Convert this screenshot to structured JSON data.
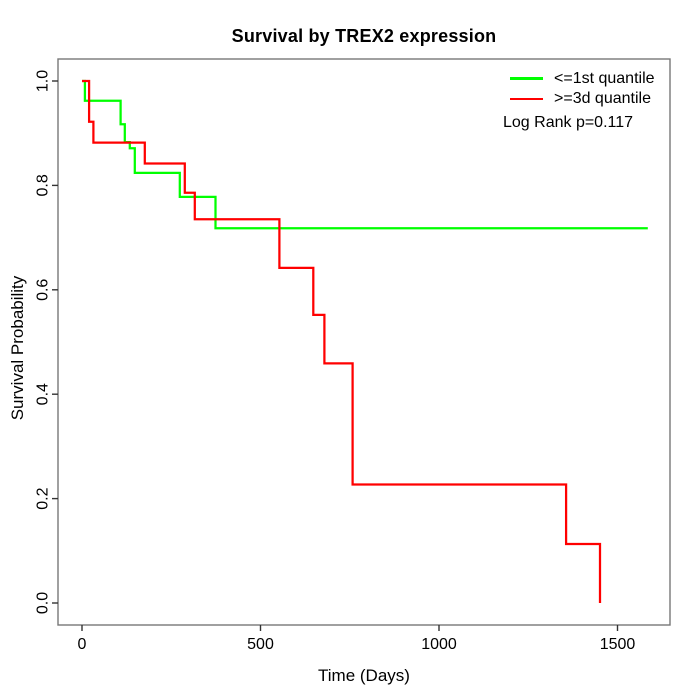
{
  "chart_data": {
    "type": "line",
    "subtype": "kaplan_meier_step",
    "title": "Survival by TREX2 expression",
    "xlabel": "Time (Days)",
    "ylabel": "Survival Probability",
    "x_ticks": [
      0,
      500,
      1000,
      1500
    ],
    "x_tick_labels": [
      "0",
      "500",
      "1000",
      "1500"
    ],
    "y_ticks": [
      0.0,
      0.2,
      0.4,
      0.6,
      0.8,
      1.0
    ],
    "y_tick_labels": [
      "0.0",
      "0.2",
      "0.4",
      "0.6",
      "0.8",
      "1.0"
    ],
    "xlim": [
      -63,
      1643
    ],
    "ylim": [
      -0.042,
      1.042
    ],
    "grid": false,
    "legend_position": "top-right",
    "annotation": "Log Rank p=0.117",
    "axis_color": "#000000",
    "box_color": "#777777",
    "series": [
      {
        "name": "<=1st quantile",
        "color": "#00ff00",
        "points": [
          [
            0,
            1.0
          ],
          [
            8,
            0.962
          ],
          [
            108,
            0.917
          ],
          [
            120,
            0.883
          ],
          [
            134,
            0.871
          ],
          [
            148,
            0.824
          ],
          [
            274,
            0.778
          ],
          [
            374,
            0.718
          ],
          [
            1585,
            0.718
          ]
        ]
      },
      {
        "name": ">=3d quantile",
        "color": "#ff0000",
        "points": [
          [
            0,
            1.0
          ],
          [
            20,
            0.922
          ],
          [
            32,
            0.882
          ],
          [
            176,
            0.842
          ],
          [
            288,
            0.786
          ],
          [
            316,
            0.735
          ],
          [
            553,
            0.642
          ],
          [
            648,
            0.552
          ],
          [
            679,
            0.459
          ],
          [
            758,
            0.227
          ],
          [
            1356,
            0.113
          ],
          [
            1451,
            0.0
          ]
        ]
      }
    ]
  }
}
